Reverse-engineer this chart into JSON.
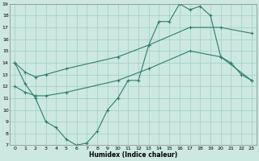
{
  "title": "",
  "xlabel": "Humidex (Indice chaleur)",
  "bg_color": "#cce8e0",
  "grid_color": "#9ecfc4",
  "line_color": "#2e7d6e",
  "xlim": [
    -0.5,
    23.5
  ],
  "ylim": [
    7,
    19
  ],
  "xticks": [
    0,
    1,
    2,
    3,
    4,
    5,
    6,
    7,
    8,
    9,
    10,
    11,
    12,
    13,
    14,
    15,
    16,
    17,
    18,
    19,
    20,
    21,
    22,
    23
  ],
  "yticks": [
    7,
    8,
    9,
    10,
    11,
    12,
    13,
    14,
    15,
    16,
    17,
    18,
    19
  ],
  "line1_x": [
    0,
    1,
    2,
    3,
    4,
    5,
    6,
    7,
    8,
    9,
    10,
    11,
    12,
    13,
    14,
    15,
    16,
    17,
    18,
    19,
    20,
    21,
    22,
    23
  ],
  "line1_y": [
    14,
    12.2,
    11,
    9.0,
    8.5,
    7.5,
    7.0,
    7.2,
    8.2,
    10.0,
    11.0,
    12.5,
    12.5,
    15.5,
    17.5,
    17.5,
    19.0,
    18.5,
    18.8,
    18.0,
    14.5,
    14.0,
    13.0,
    12.5
  ],
  "line2_x": [
    0,
    1,
    2,
    3,
    5,
    10,
    13,
    17,
    20,
    23
  ],
  "line2_y": [
    14,
    13.2,
    12.8,
    13.0,
    13.5,
    14.5,
    15.5,
    17.0,
    17.0,
    16.5
  ],
  "line3_x": [
    0,
    1,
    2,
    3,
    5,
    10,
    13,
    17,
    20,
    23
  ],
  "line3_y": [
    12,
    11.5,
    11.2,
    11.2,
    11.5,
    12.5,
    13.5,
    15.0,
    14.5,
    12.5
  ]
}
